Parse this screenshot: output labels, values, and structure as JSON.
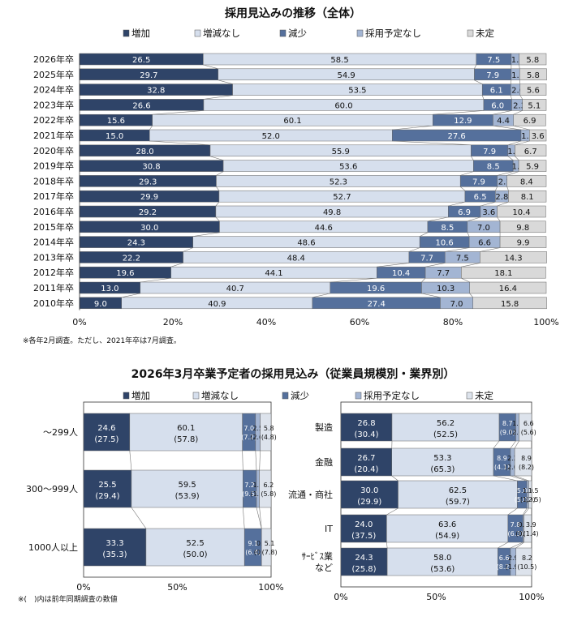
{
  "chart_data": [
    {
      "type": "bar",
      "stacked": true,
      "orientation": "horizontal",
      "title": "採用見込みの推移（全体）",
      "legend": [
        "増加",
        "増減なし",
        "減少",
        "採用予定なし",
        "未定"
      ],
      "categories": [
        "2026年卒",
        "2025年卒",
        "2024年卒",
        "2023年卒",
        "2022年卒",
        "2021年卒",
        "2020年卒",
        "2019年卒",
        "2018年卒",
        "2017年卒",
        "2016年卒",
        "2015年卒",
        "2014年卒",
        "2013年卒",
        "2012年卒",
        "2011年卒",
        "2010年卒"
      ],
      "series": [
        {
          "name": "増加",
          "values": [
            26.5,
            29.7,
            32.8,
            26.6,
            15.6,
            15.0,
            28.0,
            30.8,
            29.3,
            29.9,
            29.2,
            30.0,
            24.3,
            22.2,
            19.6,
            13.0,
            9.0
          ]
        },
        {
          "name": "増減なし",
          "values": [
            58.5,
            54.9,
            53.5,
            60.0,
            60.1,
            52.0,
            55.9,
            53.6,
            52.3,
            52.7,
            49.8,
            44.6,
            48.6,
            48.4,
            44.1,
            40.7,
            40.9
          ]
        },
        {
          "name": "減少",
          "values": [
            7.5,
            7.9,
            6.1,
            6.0,
            12.9,
            27.6,
            7.9,
            8.5,
            7.9,
            6.5,
            6.9,
            8.5,
            10.6,
            7.7,
            10.4,
            19.6,
            27.4
          ]
        },
        {
          "name": "採用予定なし",
          "values": [
            1.7,
            1.8,
            2.0,
            2.3,
            4.4,
            1.8,
            1.5,
            1.2,
            2.1,
            2.8,
            3.6,
            7.0,
            6.6,
            7.5,
            7.7,
            10.3,
            7.0
          ]
        },
        {
          "name": "未定",
          "values": [
            5.8,
            5.8,
            5.6,
            5.1,
            6.9,
            3.6,
            6.7,
            5.9,
            8.4,
            8.1,
            10.4,
            9.8,
            9.9,
            14.3,
            18.1,
            16.4,
            15.8
          ]
        }
      ],
      "xticks": [
        "0%",
        "20%",
        "40%",
        "60%",
        "80%",
        "100%"
      ],
      "xlim": [
        0,
        100
      ],
      "grid": false,
      "legend_position": "top",
      "note": "※各年2月調査。ただし、2021年卒は7月調査。",
      "colors": [
        "#2f4468",
        "#d6dfed",
        "#55709c",
        "#a3b5d3",
        "#d9d9d9"
      ]
    },
    {
      "type": "bar",
      "stacked": true,
      "orientation": "horizontal",
      "title": "2026年3月卒業予定者の採用見込み（従業員規模別・業界別）",
      "legend": [
        "増加",
        "増減なし",
        "減少",
        "採用予定なし",
        "未定"
      ],
      "panels": [
        {
          "categories": [
            "〜299人",
            "300〜999人",
            "1000人以上"
          ],
          "series": [
            {
              "name": "増加",
              "values": [
                24.6,
                25.5,
                33.3
              ],
              "prev": [
                27.5,
                29.4,
                35.3
              ]
            },
            {
              "name": "増減なし",
              "values": [
                60.1,
                59.5,
                52.5
              ],
              "prev": [
                57.8,
                53.9,
                50.0
              ]
            },
            {
              "name": "減少",
              "values": [
                7.0,
                7.2,
                9.1
              ],
              "prev": [
                7.2,
                9.5,
                6.4
              ]
            },
            {
              "name": "採用予定なし",
              "values": [
                2.5,
                1.6,
                0.0
              ],
              "prev": [
                2.6,
                1.5,
                0.5
              ]
            },
            {
              "name": "未定",
              "values": [
                5.8,
                6.2,
                5.1
              ],
              "prev": [
                4.8,
                5.8,
                7.8
              ]
            }
          ],
          "xticks": [
            "0%",
            "50%",
            "100%"
          ]
        },
        {
          "categories": [
            "製造",
            "金融",
            "流通・商社",
            "IT",
            "ｻｰﾋﾞｽ業など"
          ],
          "series": [
            {
              "name": "増加",
              "values": [
                26.8,
                26.7,
                30.0,
                24.0,
                24.3
              ],
              "prev": [
                30.4,
                20.4,
                29.9,
                37.5,
                25.8
              ]
            },
            {
              "name": "増減なし",
              "values": [
                56.2,
                53.3,
                62.5,
                63.6,
                58.0
              ],
              "prev": [
                52.5,
                65.3,
                59.7,
                54.9,
                53.6
              ]
            },
            {
              "name": "減少",
              "values": [
                8.7,
                8.9,
                5.0,
                7.8,
                6.6
              ],
              "prev": [
                9.0,
                4.1,
                5.0,
                6.3,
                8.2
              ]
            },
            {
              "name": "採用予定なし",
              "values": [
                1.7,
                2.2,
                1.0,
                0.6,
                2.9
              ],
              "prev": [
                2.6,
                2.0,
                1.0,
                0.0,
                1.9
              ]
            },
            {
              "name": "未定",
              "values": [
                6.6,
                8.9,
                1.5,
                3.9,
                8.2
              ],
              "prev": [
                5.6,
                8.2,
                2.5,
                1.4,
                10.5
              ]
            }
          ],
          "xticks": [
            "0%",
            "50%",
            "100%"
          ]
        }
      ],
      "xlim": [
        0,
        100
      ],
      "grid": false,
      "legend_position": "top",
      "note": "※(　)内は前年同期調査の数値",
      "colors": [
        "#2f4468",
        "#d6dfed",
        "#55709c",
        "#a3b5d3",
        "#dde3ec"
      ]
    }
  ]
}
